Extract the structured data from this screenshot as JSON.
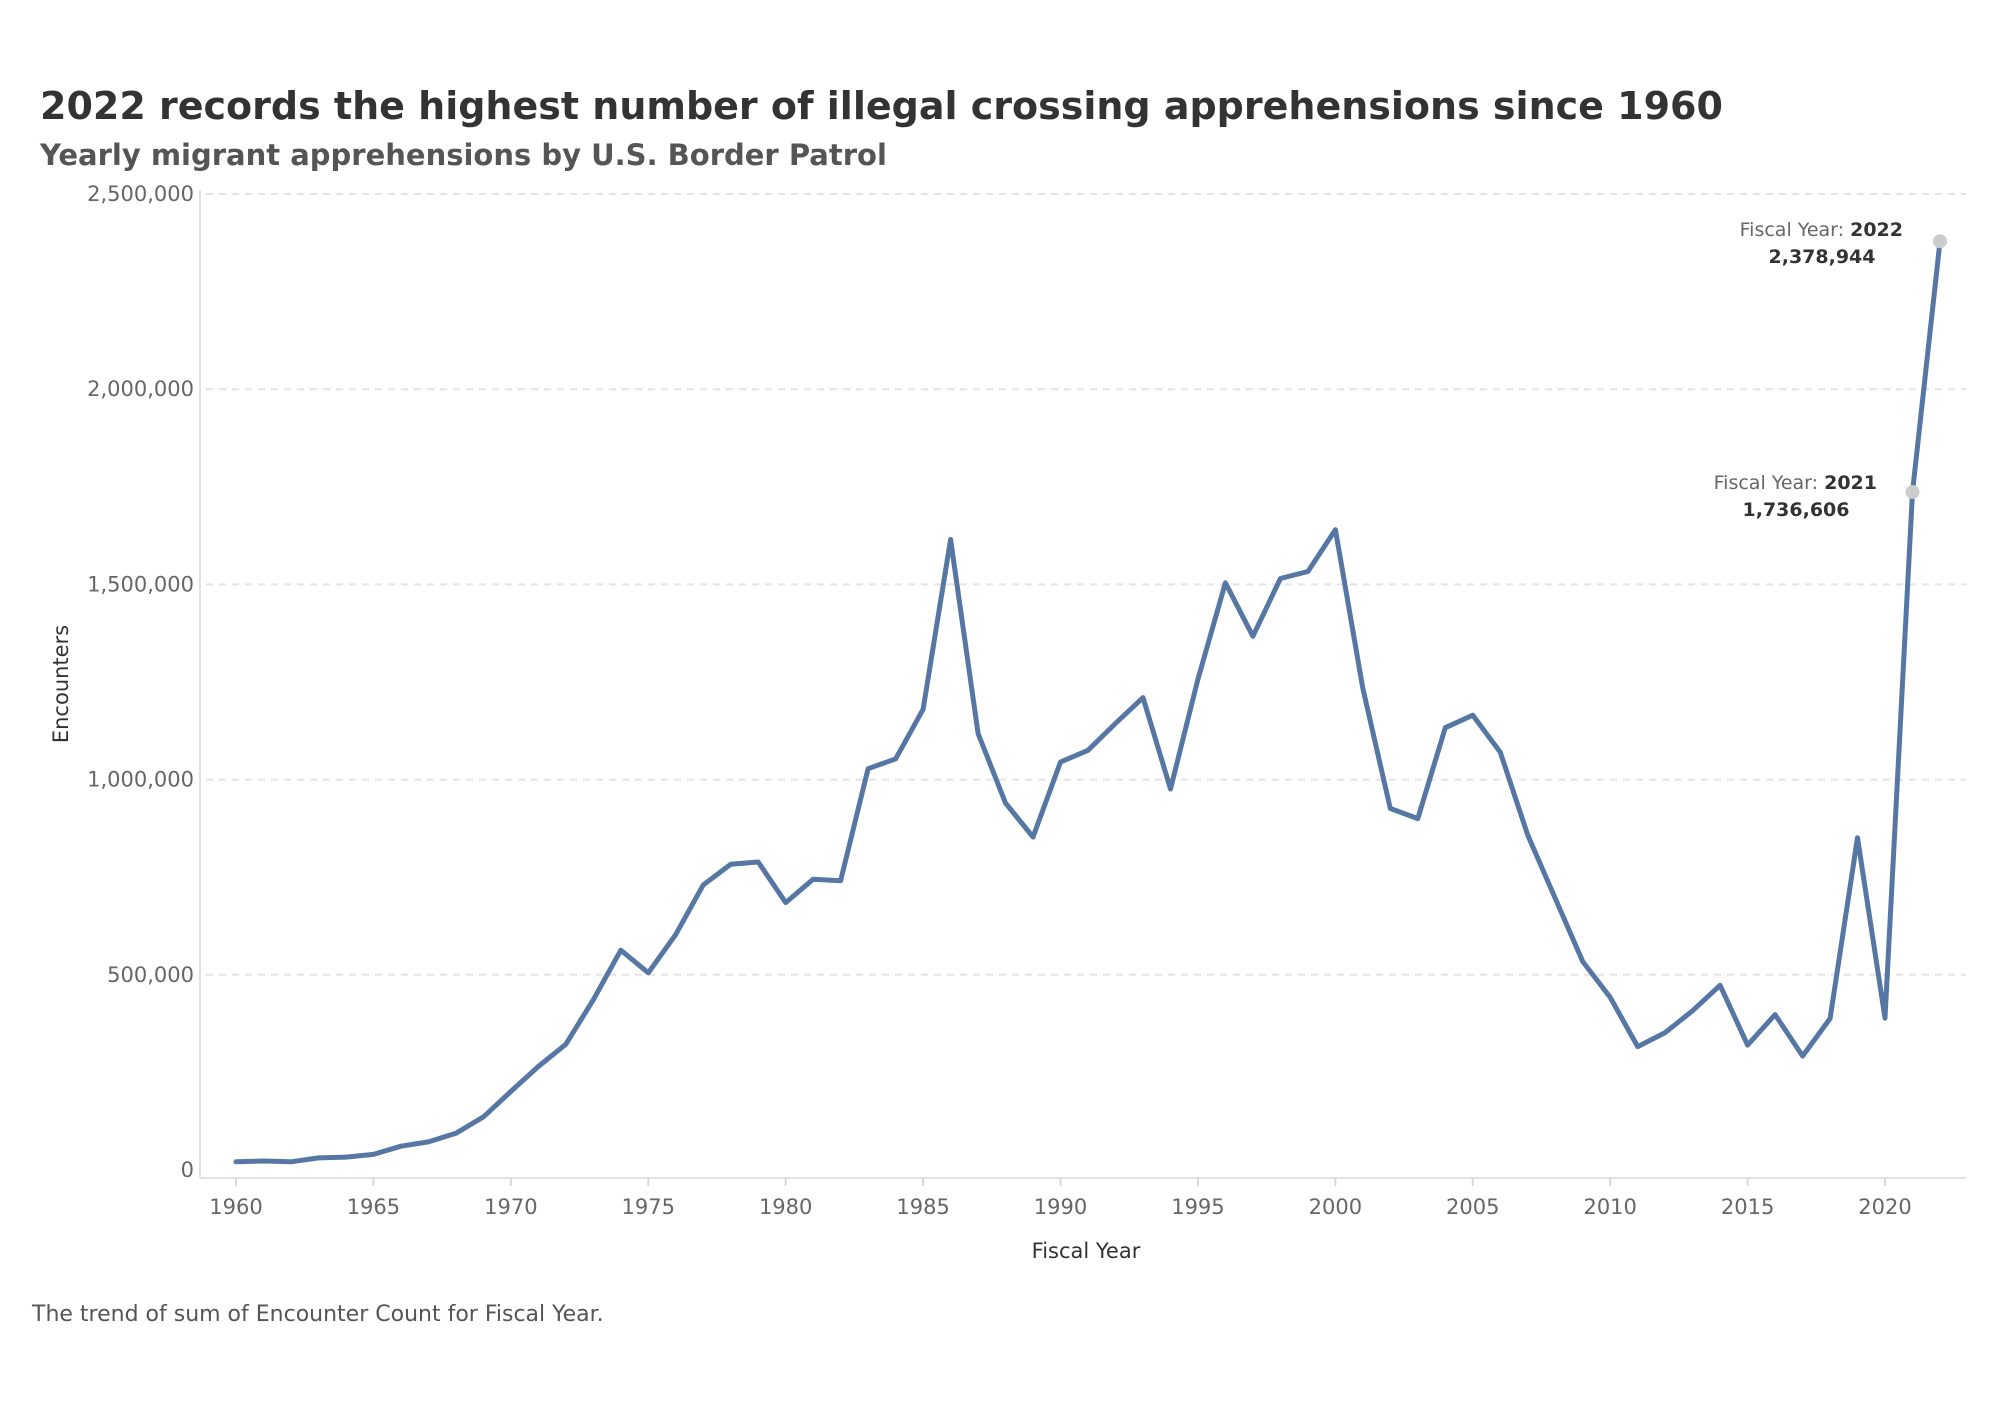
{
  "title": "2022 records the highest number of illegal crossing apprehensions since 1960",
  "subtitle": "Yearly migrant apprehensions by U.S. Border Patrol",
  "caption": "The trend of sum of Encounter Count for Fiscal Year.",
  "colors": {
    "line": "#5677a3",
    "marker": "#cccccc",
    "grid": "#e4e4e4"
  },
  "chart_data": {
    "type": "line",
    "xlabel": "Fiscal Year",
    "ylabel": "Encounters",
    "xlim": [
      1960,
      2022
    ],
    "ylim": [
      0,
      2500000
    ],
    "grid": true,
    "x_ticks": [
      "1960",
      "1965",
      "1970",
      "1975",
      "1980",
      "1985",
      "1990",
      "1995",
      "2000",
      "2005",
      "2010",
      "2015",
      "2020"
    ],
    "y_ticks": [
      {
        "value": 0,
        "label": "0"
      },
      {
        "value": 500000,
        "label": "500,000"
      },
      {
        "value": 1000000,
        "label": "1,000,000"
      },
      {
        "value": 1500000,
        "label": "1,500,000"
      },
      {
        "value": 2000000,
        "label": "2,000,000"
      },
      {
        "value": 2500000,
        "label": "2,500,000"
      }
    ],
    "series": [
      {
        "x": [
          1960,
          1961,
          1962,
          1963,
          1964,
          1965,
          1966,
          1967,
          1968,
          1969,
          1970,
          1971,
          1972,
          1973,
          1974,
          1975,
          1976,
          1977,
          1978,
          1979,
          1980,
          1981,
          1982,
          1983,
          1984,
          1985,
          1986,
          1987,
          1988,
          1989,
          1990,
          1991,
          1992,
          1993,
          1994,
          1995,
          1996,
          1997,
          1998,
          1999,
          2000,
          2001,
          2002,
          2003,
          2004,
          2005,
          2006,
          2007,
          2008,
          2009,
          2010,
          2011,
          2012,
          2013,
          2014,
          2015,
          2016,
          2017,
          2018,
          2019,
          2020,
          2021,
          2022
        ],
        "values": [
          21000,
          23000,
          21000,
          31000,
          33000,
          40000,
          61000,
          72000,
          94000,
          136000,
          201000,
          265000,
          322000,
          436000,
          563000,
          505000,
          603000,
          730000,
          783000,
          789000,
          685000,
          745000,
          741000,
          1028000,
          1053000,
          1180000,
          1615000,
          1118000,
          940000,
          853000,
          1045000,
          1075000,
          1144000,
          1210000,
          976000,
          1257000,
          1504000,
          1367000,
          1515000,
          1533000,
          1640000,
          1234000,
          926000,
          900000,
          1133000,
          1165000,
          1070000,
          858000,
          696000,
          534000,
          442000,
          316000,
          352000,
          408000,
          473000,
          320000,
          398000,
          292000,
          388000,
          851000,
          389000,
          1736606,
          2378944
        ]
      }
    ],
    "annotations": [
      {
        "label": "Fiscal Year:",
        "year": "2022",
        "value_text": "2,378,944"
      },
      {
        "label": "Fiscal Year:",
        "year": "2021",
        "value_text": "1,736,606"
      }
    ]
  }
}
